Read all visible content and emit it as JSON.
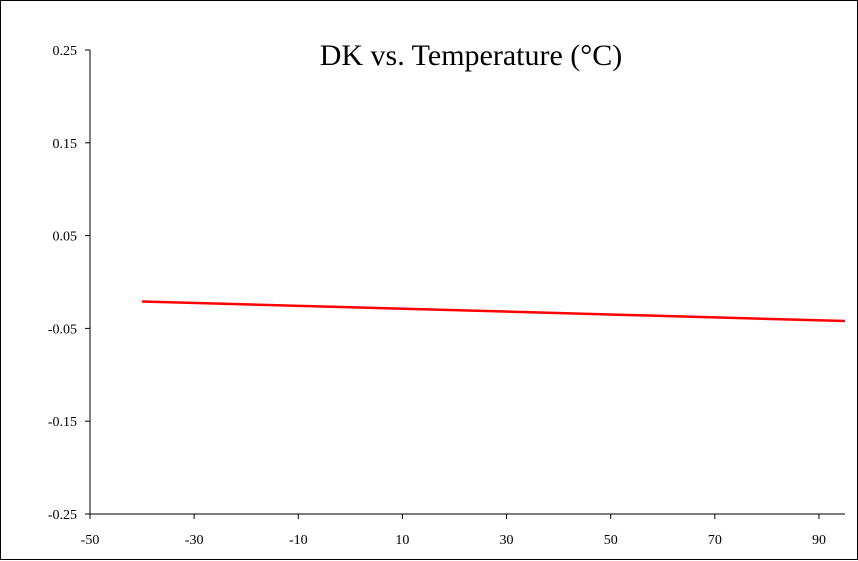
{
  "chart_data": {
    "type": "line",
    "title": "DK vs. Temperature (°C)",
    "xlabel": "",
    "ylabel": "",
    "xlim": [
      -50,
      95
    ],
    "ylim": [
      -0.25,
      0.25
    ],
    "x_ticks": [
      -50,
      -30,
      -10,
      10,
      30,
      50,
      70,
      90
    ],
    "x_tick_labels": [
      "-50",
      "-30",
      "-10",
      "10",
      "30",
      "50",
      "70",
      "90"
    ],
    "y_ticks": [
      0.25,
      0.15,
      0.05,
      -0.05,
      -0.15,
      -0.25
    ],
    "y_tick_labels": [
      "0.25",
      "0.15",
      "0.05",
      "-0.05",
      "-0.15",
      "-0.25"
    ],
    "grid": false,
    "legend": "none",
    "series": [
      {
        "color": "#ff0000",
        "x": [
          -40,
          95
        ],
        "y": [
          -0.021,
          -0.042
        ]
      }
    ]
  }
}
